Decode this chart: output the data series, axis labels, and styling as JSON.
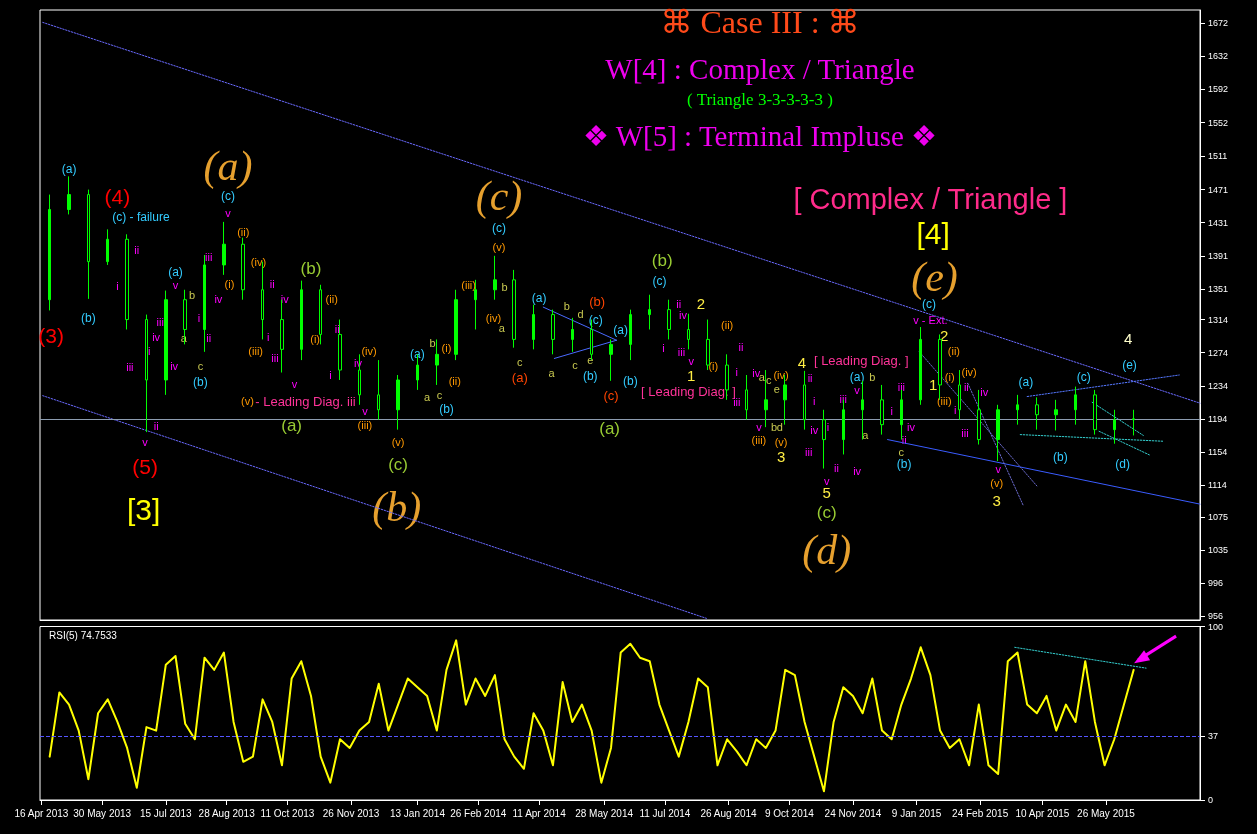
{
  "chart_data": [
    {
      "type": "candlestick",
      "title": "⌘ Case III : ⌘",
      "subtitle": "W[4] : Complex / Triangle",
      "xlim": [
        "2013-04-15",
        "2015-08-02"
      ],
      "ylim": [
        951,
        1688
      ],
      "yticks": [
        956,
        996,
        1035,
        1075,
        1114,
        1154,
        1194,
        1234,
        1274,
        1314,
        1351,
        1391,
        1431,
        1471,
        1511,
        1552,
        1592,
        1632,
        1672
      ],
      "tick_labels": "y",
      "ref_lines": [
        {
          "axis": "y",
          "value": 1194,
          "color": "#8c9cb0",
          "line_style": "solid"
        }
      ],
      "series": [
        {
          "type": "candlestick",
          "color": "#00ff00",
          "x": [
            "2013-04-22",
            "2013-05-06",
            "2013-05-20",
            "2013-06-03",
            "2013-06-17",
            "2013-07-01",
            "2013-07-15",
            "2013-07-29",
            "2013-08-12",
            "2013-08-26",
            "2013-09-09",
            "2013-09-23",
            "2013-10-07",
            "2013-10-21",
            "2013-11-04",
            "2013-11-18",
            "2013-12-02",
            "2013-12-16",
            "2013-12-30",
            "2014-01-13",
            "2014-01-27",
            "2014-02-10",
            "2014-02-24",
            "2014-03-10",
            "2014-03-24",
            "2014-04-07",
            "2014-04-21",
            "2014-05-05",
            "2014-05-19",
            "2014-06-02",
            "2014-06-16",
            "2014-06-30",
            "2014-07-14",
            "2014-07-28",
            "2014-08-11",
            "2014-08-25",
            "2014-09-08",
            "2014-09-22",
            "2014-10-06",
            "2014-10-20",
            "2014-11-03",
            "2014-11-17",
            "2014-12-01",
            "2014-12-15",
            "2014-12-29",
            "2015-01-12",
            "2015-01-26",
            "2015-02-09",
            "2015-02-23",
            "2015-03-09",
            "2015-03-23",
            "2015-04-06",
            "2015-04-20",
            "2015-05-04",
            "2015-05-18",
            "2015-06-01",
            "2015-06-15"
          ],
          "ohlc": [
            [
              1338,
              1465,
              1325,
              1447
            ],
            [
              1447,
              1487,
              1441,
              1465
            ],
            [
              1465,
              1471,
              1339,
              1384
            ],
            [
              1384,
              1423,
              1380,
              1411
            ],
            [
              1411,
              1417,
              1302,
              1314
            ],
            [
              1314,
              1320,
              1178,
              1241
            ],
            [
              1241,
              1349,
              1223,
              1338
            ],
            [
              1338,
              1350,
              1284,
              1302
            ],
            [
              1302,
              1392,
              1275,
              1380
            ],
            [
              1380,
              1432,
              1368,
              1405
            ],
            [
              1405,
              1413,
              1338,
              1350
            ],
            [
              1350,
              1384,
              1290,
              1314
            ],
            [
              1314,
              1338,
              1250,
              1278
            ],
            [
              1278,
              1361,
              1265,
              1350
            ],
            [
              1350,
              1356,
              1284,
              1296
            ],
            [
              1296,
              1314,
              1241,
              1253
            ],
            [
              1253,
              1272,
              1211,
              1223
            ],
            [
              1223,
              1265,
              1193,
              1205
            ],
            [
              1205,
              1247,
              1181,
              1241
            ],
            [
              1241,
              1272,
              1229,
              1259
            ],
            [
              1259,
              1290,
              1235,
              1272
            ],
            [
              1272,
              1350,
              1265,
              1338
            ],
            [
              1338,
              1362,
              1302,
              1350
            ],
            [
              1350,
              1391,
              1338,
              1362
            ],
            [
              1362,
              1374,
              1280,
              1290
            ],
            [
              1290,
              1332,
              1278,
              1320
            ],
            [
              1320,
              1326,
              1272,
              1290
            ],
            [
              1290,
              1316,
              1275,
              1302
            ],
            [
              1302,
              1314,
              1265,
              1272
            ],
            [
              1272,
              1290,
              1240,
              1284
            ],
            [
              1284,
              1326,
              1265,
              1320
            ],
            [
              1320,
              1344,
              1302,
              1326
            ],
            [
              1326,
              1338,
              1290,
              1302
            ],
            [
              1302,
              1321,
              1278,
              1290
            ],
            [
              1290,
              1314,
              1253,
              1259
            ],
            [
              1259,
              1272,
              1217,
              1229
            ],
            [
              1229,
              1247,
              1193,
              1205
            ],
            [
              1205,
              1253,
              1184,
              1217
            ],
            [
              1217,
              1247,
              1187,
              1235
            ],
            [
              1235,
              1252,
              1181,
              1193
            ],
            [
              1193,
              1205,
              1134,
              1169
            ],
            [
              1169,
              1217,
              1151,
              1205
            ],
            [
              1205,
              1240,
              1169,
              1217
            ],
            [
              1217,
              1235,
              1175,
              1187
            ],
            [
              1187,
              1229,
              1169,
              1217
            ],
            [
              1217,
              1305,
              1211,
              1290
            ],
            [
              1290,
              1296,
              1217,
              1235
            ],
            [
              1235,
              1253,
              1193,
              1205
            ],
            [
              1205,
              1229,
              1163,
              1169
            ],
            [
              1169,
              1211,
              1143,
              1205
            ],
            [
              1205,
              1223,
              1187,
              1211
            ],
            [
              1211,
              1220,
              1181,
              1199
            ],
            [
              1199,
              1217,
              1180,
              1205
            ],
            [
              1205,
              1233,
              1187,
              1223
            ],
            [
              1223,
              1229,
              1175,
              1181
            ],
            [
              1181,
              1205,
              1164,
              1193
            ],
            [
              1193,
              1205,
              1174,
              1194
            ]
          ]
        },
        {
          "type": "line",
          "x": [
            "2013-04-17",
            "2015-08-02"
          ],
          "values": [
            1673,
            1213
          ],
          "color": "#6a6aff",
          "line_style": "dotted"
        },
        {
          "type": "line",
          "x": [
            "2013-04-17",
            "2014-08-10"
          ],
          "values": [
            1222,
            953
          ],
          "color": "#6a6aff",
          "line_style": "dotted"
        },
        {
          "type": "line",
          "x": [
            "2014-12-19",
            "2015-08-02"
          ],
          "values": [
            1169,
            1091
          ],
          "color": "#3a5cff",
          "line_style": "solid"
        },
        {
          "type": "line",
          "x": [
            "2014-04-14",
            "2014-06-06"
          ],
          "values": [
            1329,
            1289
          ],
          "color": "#4a6aff",
          "line_style": "solid"
        },
        {
          "type": "line",
          "x": [
            "2014-04-22",
            "2014-06-06"
          ],
          "values": [
            1267,
            1289
          ],
          "color": "#4a6aff",
          "line_style": "solid"
        },
        {
          "type": "line",
          "x": [
            "2015-03-30",
            "2015-07-18"
          ],
          "values": [
            1221,
            1247
          ],
          "color": "#5577ff",
          "line_style": "dotted"
        },
        {
          "type": "line",
          "x": [
            "2015-03-25",
            "2015-07-06"
          ],
          "values": [
            1175,
            1167
          ],
          "color": "#33cccc",
          "line_style": "dotted"
        },
        {
          "type": "line",
          "x": [
            "2015-05-16",
            "2015-06-22"
          ],
          "values": [
            1214,
            1174
          ],
          "color": "#33cccc",
          "line_style": "dotted"
        },
        {
          "type": "line",
          "x": [
            "2015-05-21",
            "2015-06-27"
          ],
          "values": [
            1179,
            1150
          ],
          "color": "#33cccc",
          "line_style": "dotted"
        },
        {
          "type": "line",
          "x": [
            "2015-01-11",
            "2015-04-06"
          ],
          "values": [
            1275,
            1113
          ],
          "color": "#6a6acc",
          "line_style": "dotted"
        },
        {
          "type": "line",
          "x": [
            "2015-02-15",
            "2015-03-27"
          ],
          "values": [
            1237,
            1090
          ],
          "color": "#6a6acc",
          "line_style": "dotted"
        }
      ],
      "annotations": [
        "( Triangle 3-3-3-3-3 )",
        "❖ W[5] : Terminal Impluse ❖",
        "(3)",
        "(a)",
        "(4)",
        "(c) - failure",
        "(b)",
        "ii",
        "i",
        "(a)",
        "(c)",
        "v",
        "(ii)",
        "iii",
        "(i)",
        "iv",
        "(iv)",
        "ii",
        "iv",
        "(ii)",
        "(i)",
        "(b)",
        "ii",
        "i",
        "(iii)",
        "i",
        "iii",
        "v",
        "(v)",
        "- Leading Diag. iii",
        "(a)",
        "(a)",
        "v",
        "b",
        "a",
        "i",
        "ii",
        "c",
        "(b)",
        "iii",
        "iv",
        "i",
        "iv",
        "iii",
        "ii",
        "v",
        "(5)",
        "[3]",
        "iv",
        "(iv)",
        "v",
        "(iii)",
        "(v)",
        "(c)",
        "(b)",
        "(a)",
        "b",
        "(i)",
        "a",
        "c",
        "(ii)",
        "(b)",
        "(iii)",
        "(c)",
        "(c)",
        "(v)",
        "b",
        "(iv)",
        "a",
        "c",
        "(a)",
        "(a)",
        "b",
        "d",
        "(b)",
        "(c)",
        "(a)",
        "a",
        "c",
        "e",
        "(b)",
        "(b)",
        "(c)",
        "(a)",
        "[ Complex / Triangle ]",
        "[4]",
        "(e)",
        "(b)",
        "(c)",
        "ii",
        "i",
        "iv",
        "iii",
        "v",
        "1",
        "2",
        "(ii)",
        "(i)",
        "ii",
        "i",
        "[ Leading Diag. ]",
        "iv",
        "a",
        "c",
        "e",
        "(iv)",
        "4",
        "ii",
        "i",
        "iii",
        "v",
        "b",
        "d",
        "(iii)",
        "(v)",
        "3",
        "iv",
        "i",
        "iii",
        "ii",
        "v",
        "5",
        "(c)",
        "(d)",
        "[ Leading Diag. ]",
        "(a)",
        "b",
        "v",
        "iii",
        "a",
        "iv",
        "iii",
        "i",
        "iv",
        "ii",
        "c",
        "(b)",
        "(c)",
        "v - Ext.",
        "2",
        "(ii)",
        "1",
        "(i)",
        "(iv)",
        "ii",
        "(iii)",
        "i",
        "iv",
        "iii",
        "v",
        "(v)",
        "3",
        "(a)",
        "(b)",
        "(c)",
        "(d)",
        "(e)",
        "4"
      ]
    },
    {
      "type": "line",
      "title": "RSI(5) 74.7533",
      "xlim": [
        "2013-04-15",
        "2015-08-02"
      ],
      "ylim": [
        0,
        100
      ],
      "yticks": [
        0,
        37,
        100
      ],
      "xticks": [
        {
          "value": "2013-04-16",
          "label": "16 Apr 2013"
        },
        {
          "value": "2013-05-30",
          "label": "30 May 2013"
        },
        {
          "value": "2013-07-15",
          "label": "15 Jul 2013"
        },
        {
          "value": "2013-08-28",
          "label": "28 Aug 2013"
        },
        {
          "value": "2013-10-11",
          "label": "11 Oct 2013"
        },
        {
          "value": "2013-11-26",
          "label": "26 Nov 2013"
        },
        {
          "value": "2014-01-13",
          "label": "13 Jan 2014"
        },
        {
          "value": "2014-02-26",
          "label": "26 Feb 2014"
        },
        {
          "value": "2014-04-11",
          "label": "11 Apr 2014"
        },
        {
          "value": "2014-05-28",
          "label": "28 May 2014"
        },
        {
          "value": "2014-07-11",
          "label": "11 Jul 2014"
        },
        {
          "value": "2014-08-26",
          "label": "26 Aug 2014"
        },
        {
          "value": "2014-10-09",
          "label": "9 Oct 2014"
        },
        {
          "value": "2014-11-24",
          "label": "24 Nov 2014"
        },
        {
          "value": "2015-01-09",
          "label": "9 Jan 2015"
        },
        {
          "value": "2015-02-24",
          "label": "24 Feb 2015"
        },
        {
          "value": "2015-04-10",
          "label": "10 Apr 2015"
        },
        {
          "value": "2015-05-26",
          "label": "26 May 2015"
        }
      ],
      "ref_lines": [
        {
          "axis": "y",
          "value": 37,
          "color": "#5555ff",
          "line_style": "dashed"
        }
      ],
      "series": [
        {
          "color": "#ffff00",
          "x": [
            "2013-04-22",
            "2013-04-29",
            "2013-05-06",
            "2013-05-13",
            "2013-05-20",
            "2013-05-27",
            "2013-06-03",
            "2013-06-10",
            "2013-06-17",
            "2013-06-24",
            "2013-07-01",
            "2013-07-08",
            "2013-07-15",
            "2013-07-22",
            "2013-07-29",
            "2013-08-05",
            "2013-08-12",
            "2013-08-19",
            "2013-08-26",
            "2013-09-02",
            "2013-09-09",
            "2013-09-16",
            "2013-09-23",
            "2013-09-30",
            "2013-10-07",
            "2013-10-14",
            "2013-10-21",
            "2013-10-28",
            "2013-11-04",
            "2013-11-11",
            "2013-11-18",
            "2013-11-25",
            "2013-12-02",
            "2013-12-09",
            "2013-12-16",
            "2013-12-23",
            "2013-12-30",
            "2014-01-06",
            "2014-01-13",
            "2014-01-20",
            "2014-01-27",
            "2014-02-03",
            "2014-02-10",
            "2014-02-17",
            "2014-02-24",
            "2014-03-03",
            "2014-03-10",
            "2014-03-17",
            "2014-03-24",
            "2014-03-31",
            "2014-04-07",
            "2014-04-14",
            "2014-04-21",
            "2014-04-28",
            "2014-05-05",
            "2014-05-12",
            "2014-05-19",
            "2014-05-26",
            "2014-06-02",
            "2014-06-09",
            "2014-06-16",
            "2014-06-23",
            "2014-06-30",
            "2014-07-07",
            "2014-07-14",
            "2014-07-21",
            "2014-07-28",
            "2014-08-04",
            "2014-08-11",
            "2014-08-18",
            "2014-08-25",
            "2014-09-01",
            "2014-09-08",
            "2014-09-15",
            "2014-09-22",
            "2014-09-29",
            "2014-10-06",
            "2014-10-13",
            "2014-10-20",
            "2014-10-27",
            "2014-11-03",
            "2014-11-10",
            "2014-11-17",
            "2014-11-24",
            "2014-12-01",
            "2014-12-08",
            "2014-12-15",
            "2014-12-22",
            "2014-12-29",
            "2015-01-05",
            "2015-01-12",
            "2015-01-19",
            "2015-01-26",
            "2015-02-02",
            "2015-02-09",
            "2015-02-16",
            "2015-02-23",
            "2015-03-02",
            "2015-03-09",
            "2015-03-16",
            "2015-03-23",
            "2015-03-30",
            "2015-04-06",
            "2015-04-13",
            "2015-04-20",
            "2015-04-27",
            "2015-05-04",
            "2015-05-11",
            "2015-05-18",
            "2015-05-25",
            "2015-06-01",
            "2015-06-08",
            "2015-06-15"
          ],
          "values": [
            25,
            62,
            55,
            40,
            12,
            50,
            58,
            45,
            30,
            7,
            42,
            40,
            78,
            83,
            44,
            35,
            82,
            75,
            85,
            45,
            22,
            25,
            58,
            45,
            20,
            70,
            80,
            60,
            25,
            10,
            35,
            30,
            40,
            45,
            67,
            40,
            55,
            70,
            65,
            60,
            40,
            75,
            92,
            55,
            70,
            60,
            72,
            35,
            25,
            18,
            50,
            40,
            20,
            68,
            45,
            55,
            40,
            10,
            30,
            85,
            90,
            82,
            80,
            55,
            40,
            25,
            45,
            70,
            65,
            20,
            35,
            28,
            20,
            35,
            30,
            40,
            75,
            72,
            45,
            25,
            5,
            45,
            65,
            60,
            50,
            70,
            40,
            35,
            55,
            70,
            88,
            72,
            40,
            30,
            35,
            20,
            55,
            20,
            15,
            80,
            85,
            55,
            50,
            60,
            40,
            55,
            45,
            80,
            45,
            20,
            35,
            55,
            75
          ]
        },
        {
          "x": [
            "2015-03-21",
            "2015-06-24"
          ],
          "values": [
            88,
            76
          ],
          "color": "#33cccc",
          "line_style": "dotted"
        }
      ]
    }
  ]
}
